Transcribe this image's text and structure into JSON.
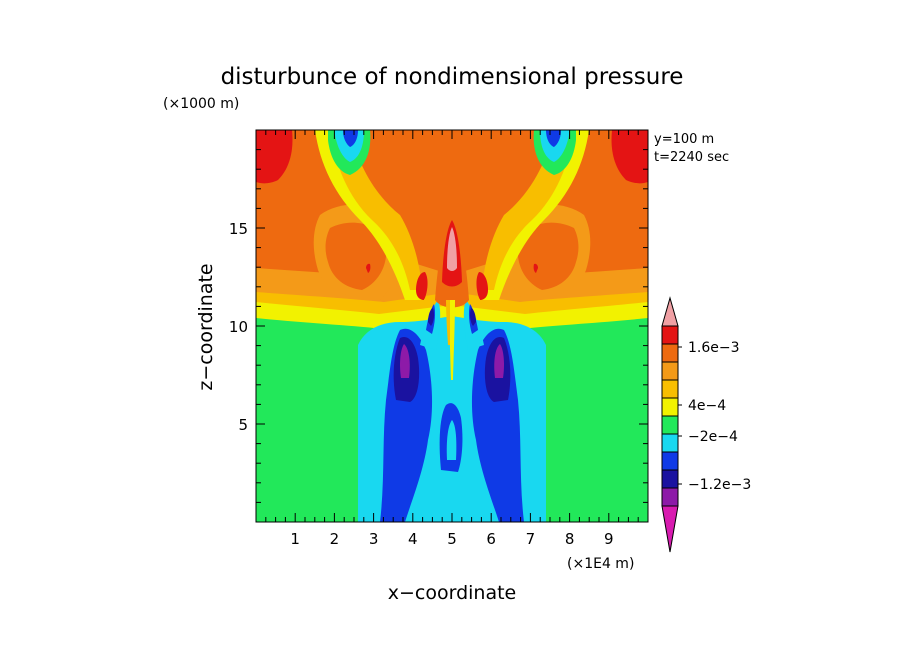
{
  "chart_data": {
    "type": "heatmap",
    "title": "disturbunce of nondimensional pressure",
    "y_unit": "(×1000 m)",
    "x_unit": "(×1E4 m)",
    "xlabel": "x−coordinate",
    "ylabel": "z−coordinate",
    "annotations": [
      "y=100 m",
      "t=2240 sec"
    ],
    "xlim": [
      0,
      10
    ],
    "ylim": [
      0,
      20
    ],
    "x_ticks": [
      "1",
      "2",
      "3",
      "4",
      "5",
      "6",
      "7",
      "8",
      "9"
    ],
    "y_ticks": [
      "5",
      "10",
      "15"
    ],
    "x_tick_values": [
      1,
      2,
      3,
      4,
      5,
      6,
      7,
      8,
      9
    ],
    "y_tick_values": [
      5,
      10,
      15
    ],
    "colorbar": {
      "levels_bottom_to_top": [
        {
          "color": "#d81bb0"
        },
        {
          "color": "#8d1aa8"
        },
        {
          "color": "#1a12a0"
        },
        {
          "color": "#0f3ae6"
        },
        {
          "color": "#19d8f0"
        },
        {
          "color": "#22e85a"
        },
        {
          "color": "#f2f200"
        },
        {
          "color": "#f8be00"
        },
        {
          "color": "#f49a18"
        },
        {
          "color": "#ee6a10"
        },
        {
          "color": "#e41414"
        },
        {
          "color": "#f0a0a4"
        }
      ],
      "labels": [
        {
          "text": "1.6e−3",
          "value": 0.0016
        },
        {
          "text": "4e−4",
          "value": 0.0004
        },
        {
          "text": "−2e−4",
          "value": -0.0002
        },
        {
          "text": "−1.2e−3",
          "value": -0.0012
        }
      ],
      "colors": {
        "magenta": "#d81bb0",
        "purple": "#8d1aa8",
        "navy": "#1a12a0",
        "blue": "#0f3ae6",
        "cyan": "#19d8f0",
        "green": "#22e85a",
        "yellow": "#f2f200",
        "gold": "#f8be00",
        "lightorange": "#f49a18",
        "orange": "#ee6a10",
        "red": "#e41414",
        "pink": "#f0a0a4"
      }
    }
  }
}
